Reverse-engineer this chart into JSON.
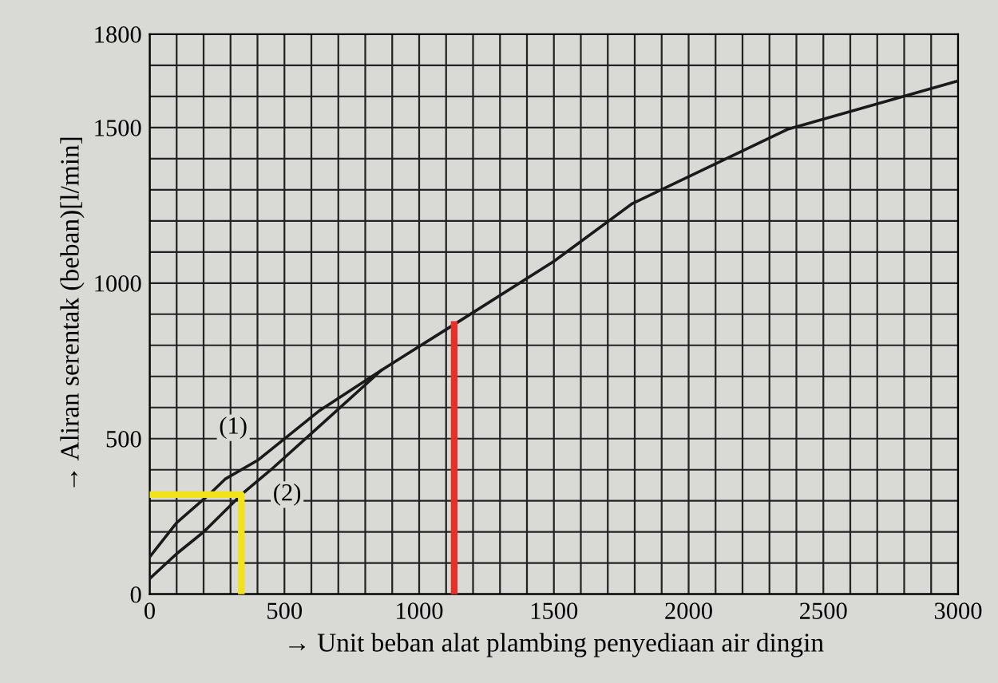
{
  "chart_data": {
    "type": "line",
    "xlabel": "→ Unit beban alat plambing penyediaan air dingin",
    "ylabel": "→ Aliran serentak (beban)[l/min]",
    "xlim": [
      0,
      3000
    ],
    "ylim": [
      0,
      1800
    ],
    "xticks": [
      0,
      {
        "value": 100,
        "label": null
      },
      {
        "value": 200,
        "label": null
      },
      {
        "value": 300,
        "label": null
      },
      {
        "value": 400,
        "label": null
      },
      500,
      {
        "value": 600,
        "label": null
      },
      {
        "value": 700,
        "label": null
      },
      {
        "value": 800,
        "label": null
      },
      {
        "value": 900,
        "label": null
      },
      1000,
      {
        "value": 1100,
        "label": null
      },
      {
        "value": 1200,
        "label": null
      },
      {
        "value": 1300,
        "label": null
      },
      {
        "value": 1400,
        "label": null
      },
      1500,
      {
        "value": 1600,
        "label": null
      },
      {
        "value": 1700,
        "label": null
      },
      {
        "value": 1800,
        "label": null
      },
      {
        "value": 1900,
        "label": null
      },
      2000,
      {
        "value": 2100,
        "label": null
      },
      {
        "value": 2200,
        "label": null
      },
      {
        "value": 2300,
        "label": null
      },
      {
        "value": 2400,
        "label": null
      },
      2500,
      {
        "value": 2600,
        "label": null
      },
      {
        "value": 2700,
        "label": null
      },
      {
        "value": 2800,
        "label": null
      },
      {
        "value": 2900,
        "label": null
      },
      3000
    ],
    "yticks": [
      0,
      {
        "value": 100,
        "label": null
      },
      {
        "value": 200,
        "label": null
      },
      {
        "value": 300,
        "label": null
      },
      {
        "value": 400,
        "label": null
      },
      500,
      {
        "value": 600,
        "label": null
      },
      {
        "value": 700,
        "label": null
      },
      {
        "value": 800,
        "label": null
      },
      {
        "value": 900,
        "label": null
      },
      1000,
      {
        "value": 1100,
        "label": null
      },
      {
        "value": 1200,
        "label": null
      },
      {
        "value": 1300,
        "label": null
      },
      {
        "value": 1400,
        "label": null
      },
      1500,
      {
        "value": 1600,
        "label": null
      },
      {
        "value": 1700,
        "label": null
      },
      1800
    ],
    "grid": true,
    "series": [
      {
        "color": "#1a1a1a",
        "x": [
          0,
          100,
          220,
          280,
          400,
          630,
          860,
          1130,
          1500,
          1790,
          2370,
          3000
        ],
        "values": [
          120,
          230,
          320,
          370,
          430,
          590,
          720,
          867,
          1070,
          1255,
          1495,
          1650
        ]
      },
      {
        "color": "#1a1a1a",
        "x": [
          0,
          100,
          200,
          340,
          450,
          630,
          860
        ],
        "values": [
          50,
          130,
          200,
          320,
          400,
          540,
          720
        ]
      },
      {
        "color": "#f2e21c",
        "x": [
          0,
          340,
          340
        ],
        "values": [
          320,
          320,
          0
        ]
      },
      {
        "color": "#e8302a",
        "x": [
          1130,
          1130
        ],
        "values": [
          0,
          867
        ]
      }
    ],
    "annotations": [
      {
        "text": "(1)",
        "x": 310,
        "y": 535
      },
      {
        "text": "(2)",
        "x": 510,
        "y": 320
      }
    ]
  }
}
